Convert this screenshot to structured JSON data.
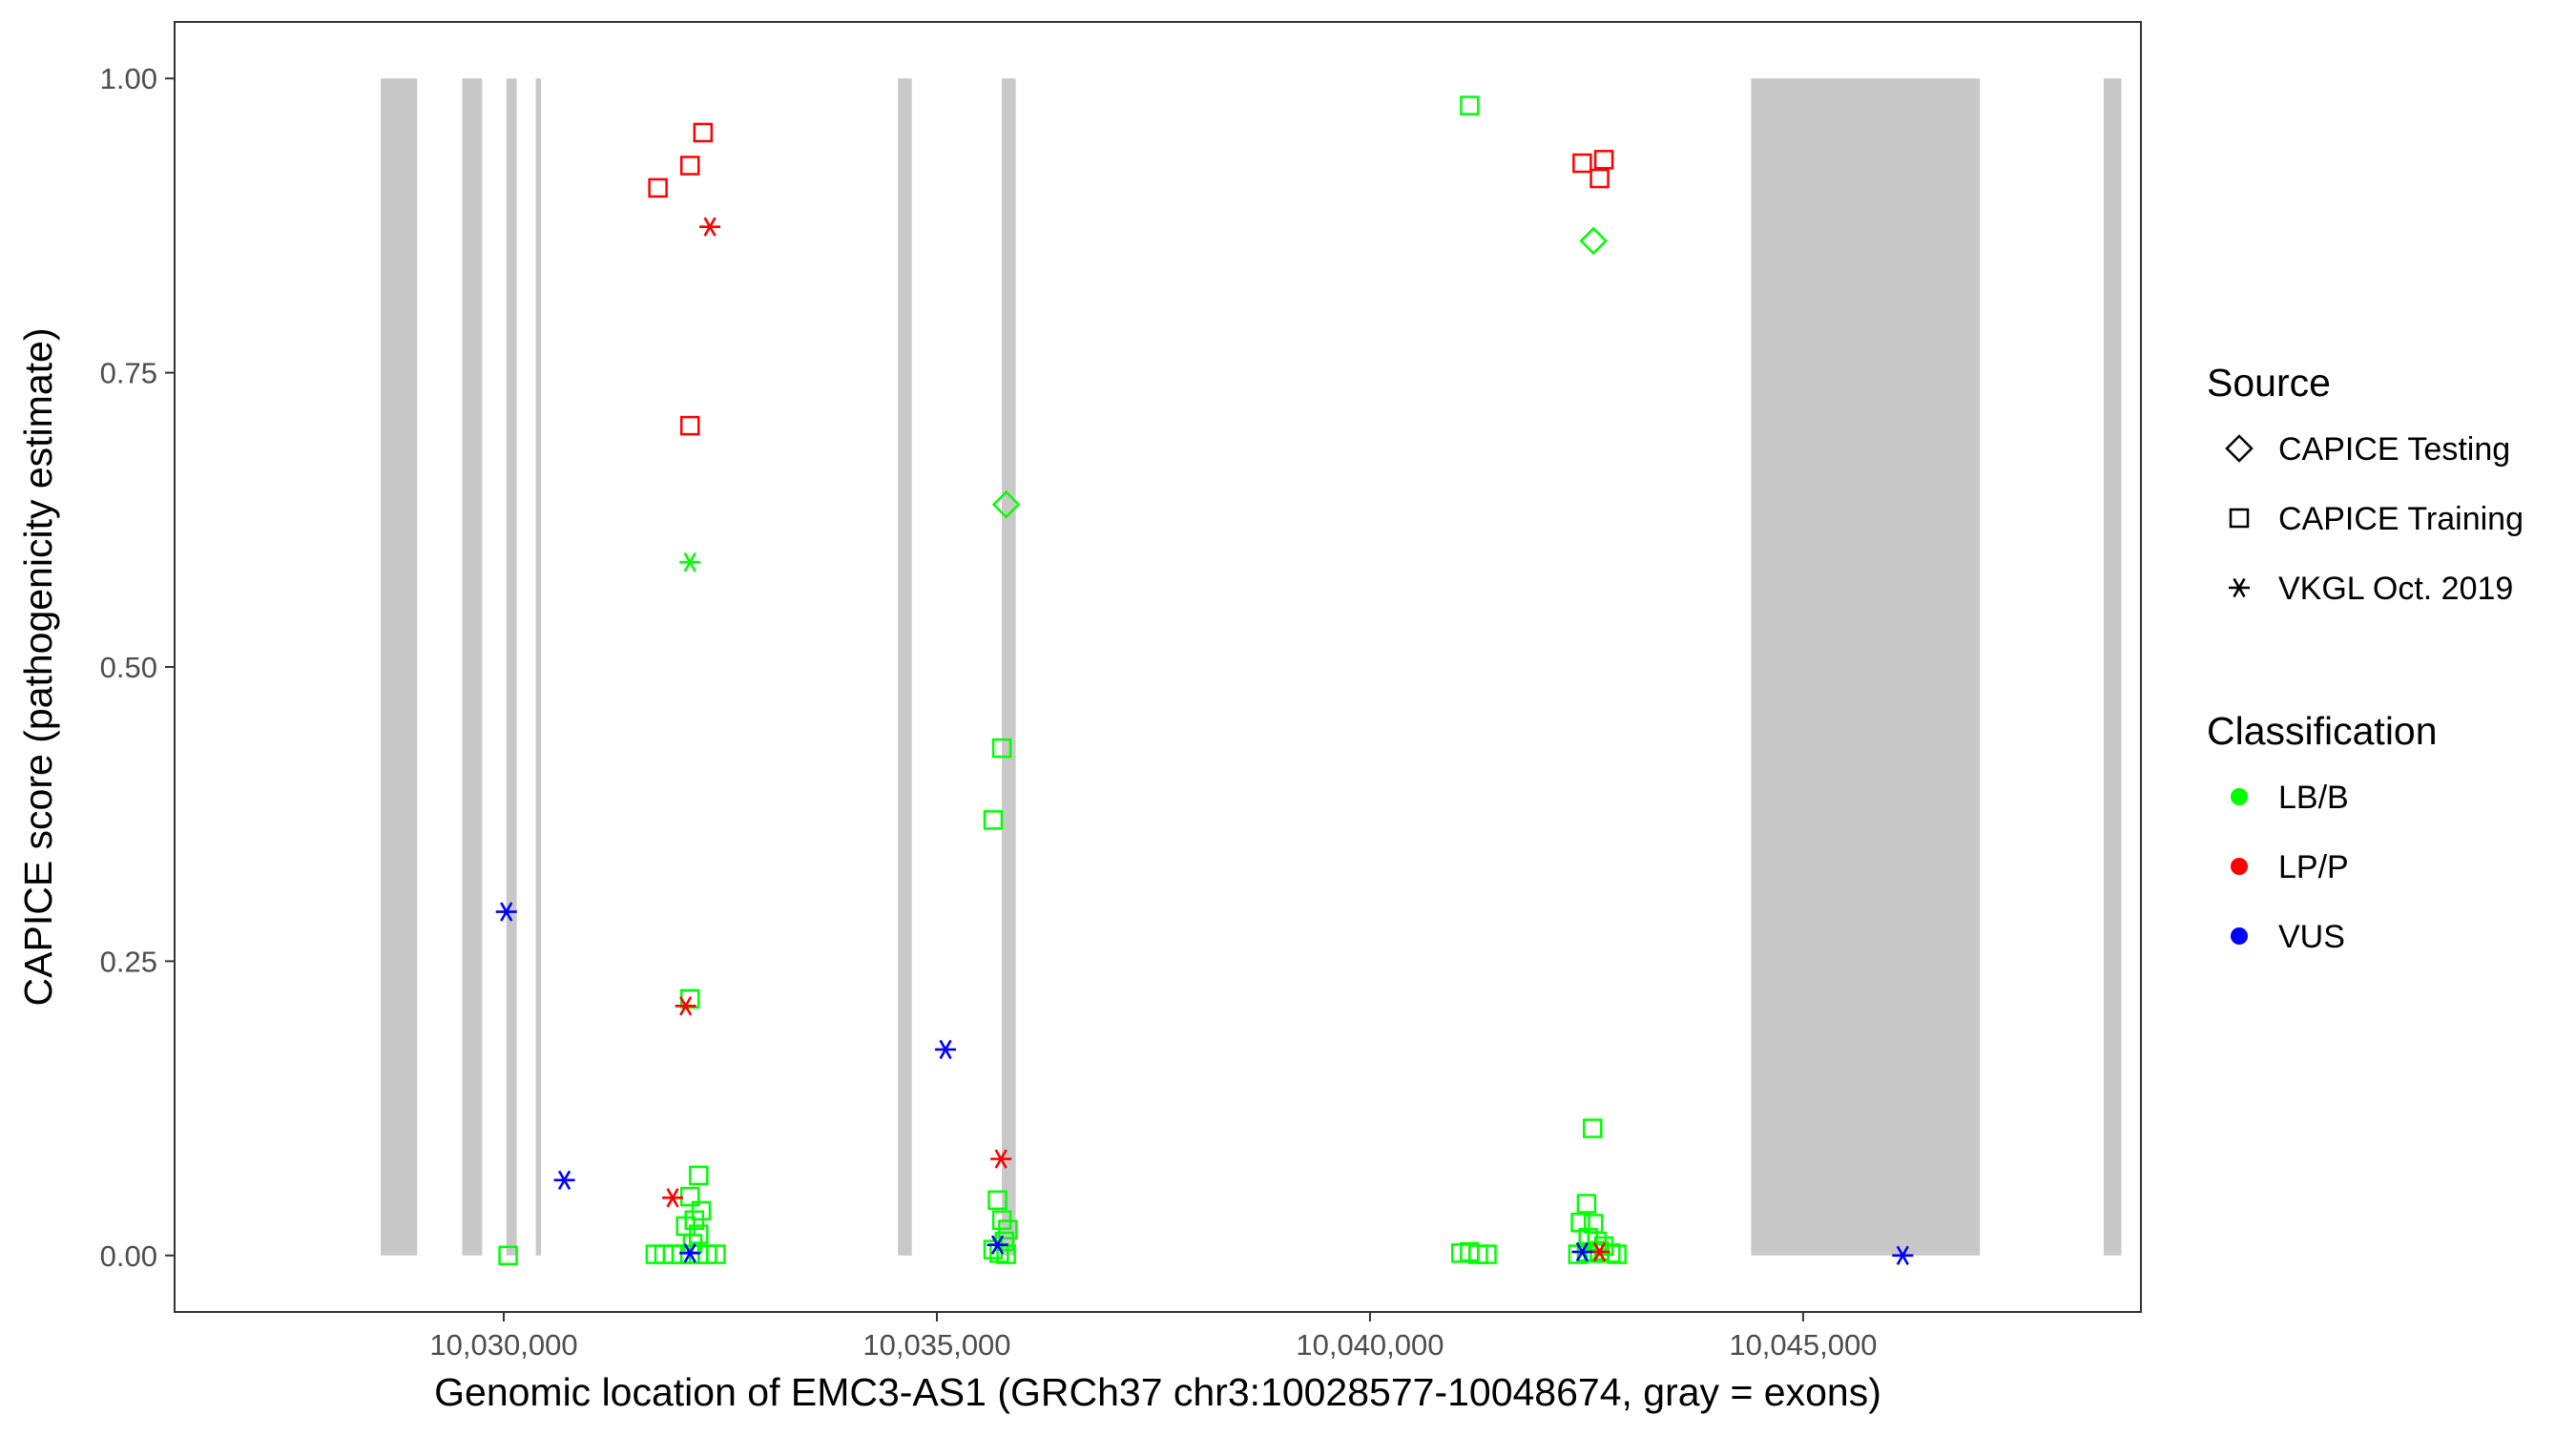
{
  "chart_data": {
    "type": "scatter",
    "title": "",
    "xlabel": "Genomic location of EMC3-AS1 (GRCh37 chr3:10028577-10048674, gray = exons)",
    "ylabel": "CAPICE score (pathogenicity estimate)",
    "xlim": [
      10026200,
      10048900
    ],
    "ylim": [
      -0.048,
      1.048
    ],
    "x_ticks": [
      10030000,
      10035000,
      10040000,
      10045000
    ],
    "x_tick_labels": [
      "10,030,000",
      "10,035,000",
      "10,040,000",
      "10,045,000"
    ],
    "y_ticks": [
      0,
      0.25,
      0.5,
      0.75,
      1
    ],
    "y_tick_labels": [
      "0.00",
      "0.25",
      "0.50",
      "0.75",
      "1.00"
    ],
    "grid": false,
    "exon_color": "#c8c8c8",
    "exons": [
      [
        10028580,
        10029000
      ],
      [
        10029520,
        10029750
      ],
      [
        10030030,
        10030150
      ],
      [
        10030370,
        10030430
      ],
      [
        10034550,
        10034710
      ],
      [
        10035750,
        10035910
      ],
      [
        10044400,
        10047040
      ],
      [
        10048470,
        10048674
      ]
    ],
    "legend": {
      "placement": "right",
      "source_title": "Source",
      "source_items": [
        {
          "label": "CAPICE Testing",
          "shape": "diamond"
        },
        {
          "label": "CAPICE Training",
          "shape": "square"
        },
        {
          "label": "VKGL Oct. 2019",
          "shape": "asterisk"
        }
      ],
      "class_title": "Classification",
      "class_items": [
        {
          "label": "LB/B",
          "color": "#00ff00"
        },
        {
          "label": "LP/P",
          "color": "#ff0000"
        },
        {
          "label": "VUS",
          "color": "#0000ff"
        }
      ]
    },
    "series": [
      {
        "name": "CAPICE Testing",
        "classification": "LB/B",
        "shape": "diamond",
        "color": "#00ff00",
        "points": [
          [
            10035800,
            0.638
          ],
          [
            10042580,
            0.862
          ]
        ]
      },
      {
        "name": "CAPICE Training",
        "classification": "LP/P",
        "shape": "square",
        "color": "#ff0000",
        "points": [
          [
            10031780,
            0.907
          ],
          [
            10032150,
            0.926
          ],
          [
            10032300,
            0.954
          ],
          [
            10032150,
            0.705
          ],
          [
            10042450,
            0.928
          ],
          [
            10042700,
            0.931
          ],
          [
            10042650,
            0.915
          ]
        ]
      },
      {
        "name": "CAPICE Training",
        "classification": "LB/B",
        "shape": "square",
        "color": "#00ff00",
        "points": [
          [
            10041150,
            0.977
          ],
          [
            10035750,
            0.431
          ],
          [
            10035650,
            0.37
          ],
          [
            10042570,
            0.108
          ],
          [
            10032150,
            0.218
          ],
          [
            10030050,
            0.0
          ],
          [
            10032250,
            0.068
          ],
          [
            10032150,
            0.05
          ],
          [
            10032280,
            0.038
          ],
          [
            10032100,
            0.025
          ],
          [
            10032200,
            0.03
          ],
          [
            10032250,
            0.018
          ],
          [
            10032180,
            0.01
          ],
          [
            10031750,
            0.001
          ],
          [
            10031850,
            0.001
          ],
          [
            10031950,
            0.001
          ],
          [
            10032050,
            0.001
          ],
          [
            10032150,
            0.001
          ],
          [
            10032250,
            0.001
          ],
          [
            10032350,
            0.001
          ],
          [
            10032450,
            0.001
          ],
          [
            10035700,
            0.047
          ],
          [
            10035750,
            0.03
          ],
          [
            10035820,
            0.022
          ],
          [
            10035780,
            0.012
          ],
          [
            10035650,
            0.005
          ],
          [
            10035720,
            0.002
          ],
          [
            10035800,
            0.001
          ],
          [
            10041050,
            0.002
          ],
          [
            10041150,
            0.003
          ],
          [
            10041250,
            0.001
          ],
          [
            10041350,
            0.001
          ],
          [
            10042500,
            0.044
          ],
          [
            10042430,
            0.028
          ],
          [
            10042580,
            0.027
          ],
          [
            10042520,
            0.015
          ],
          [
            10042620,
            0.012
          ],
          [
            10042700,
            0.008
          ],
          [
            10042650,
            0.004
          ],
          [
            10042500,
            0.003
          ],
          [
            10042780,
            0.002
          ],
          [
            10042850,
            0.001
          ],
          [
            10042400,
            0.001
          ],
          [
            10042580,
            0.002
          ]
        ]
      },
      {
        "name": "VKGL Oct. 2019",
        "classification": "LP/P",
        "shape": "asterisk",
        "color": "#ff0000",
        "points": [
          [
            10032380,
            0.874
          ],
          [
            10032100,
            0.212
          ],
          [
            10035740,
            0.082
          ],
          [
            10031950,
            0.049
          ],
          [
            10042650,
            0.003
          ]
        ]
      },
      {
        "name": "VKGL Oct. 2019",
        "classification": "LB/B",
        "shape": "asterisk",
        "color": "#00ff00",
        "points": [
          [
            10032150,
            0.589
          ]
        ]
      },
      {
        "name": "VKGL Oct. 2019",
        "classification": "VUS",
        "shape": "asterisk",
        "color": "#0000ff",
        "points": [
          [
            10030030,
            0.292
          ],
          [
            10030700,
            0.064
          ],
          [
            10035100,
            0.175
          ],
          [
            10035700,
            0.009
          ],
          [
            10032150,
            0.002
          ],
          [
            10042450,
            0.003
          ],
          [
            10046150,
            0.0
          ]
        ]
      }
    ]
  }
}
